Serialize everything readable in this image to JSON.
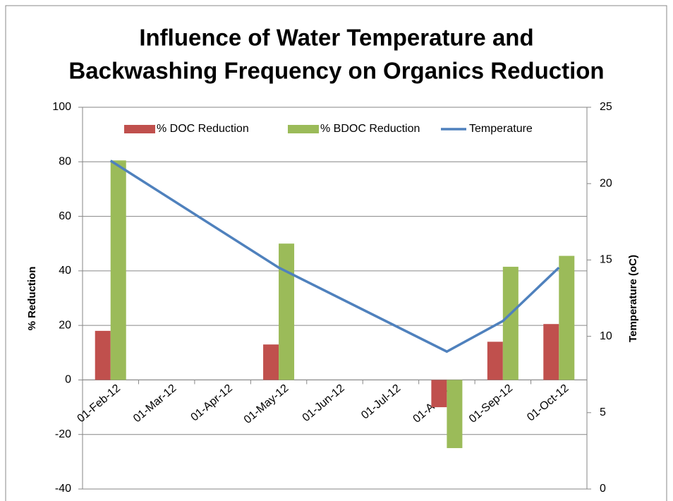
{
  "chart_data": {
    "type": "bar",
    "title": [
      "Influence of Water Temperature and",
      "Backwashing Frequency on Organics Reduction"
    ],
    "y_label": "% Reduction",
    "y2_label": "Temperature (oC)",
    "categories": [
      "01-Feb-12",
      "01-Mar-12",
      "01-Apr-12",
      "01-May-12",
      "01-Jun-12",
      "01-Jul-12",
      "01-Aug-12",
      "01-Sep-12",
      "01-Oct-12"
    ],
    "series": [
      {
        "name": "% DOC Reduction",
        "type": "bar",
        "color": "#c0504d",
        "values": [
          18,
          null,
          null,
          13,
          null,
          null,
          -10,
          14,
          20.5
        ]
      },
      {
        "name": "% BDOC Reduction",
        "type": "bar",
        "color": "#9bbb59",
        "values": [
          80.5,
          null,
          null,
          50,
          null,
          null,
          -25,
          41.5,
          45.5
        ]
      },
      {
        "name": "Temperature",
        "type": "line",
        "axis": "y2",
        "color": "#4f81bd",
        "x": [
          "01-Feb-12",
          "01-May-12",
          "01-Aug-12",
          "01-Sep-12",
          "01-Oct-12"
        ],
        "values": [
          21.5,
          14.5,
          9,
          11,
          14.5
        ]
      }
    ],
    "ylim": [
      -40,
      100
    ],
    "yticks": [
      -40,
      -20,
      0,
      20,
      40,
      60,
      80,
      100
    ],
    "y2lim": [
      0,
      25
    ],
    "y2ticks": [
      0,
      5,
      10,
      15,
      20,
      25
    ],
    "grid": true,
    "legend": "top"
  }
}
